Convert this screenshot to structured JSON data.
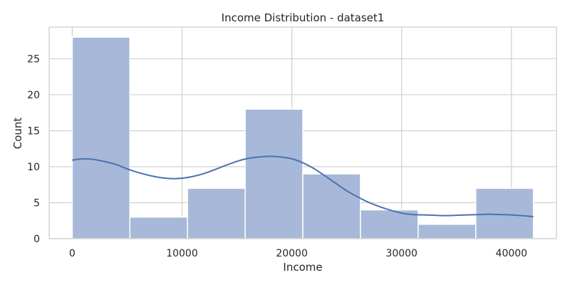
{
  "chart_data": {
    "type": "bar",
    "title": "Income Distribution - dataset1",
    "xlabel": "Income",
    "ylabel": "Count",
    "xlim": [
      -2100,
      44100
    ],
    "ylim": [
      0,
      29.4
    ],
    "xticks": [
      0,
      10000,
      20000,
      30000,
      40000
    ],
    "yticks": [
      0,
      5,
      10,
      15,
      20,
      25
    ],
    "bins": [
      {
        "x0": 0,
        "x1": 5250,
        "count": 28
      },
      {
        "x0": 5250,
        "x1": 10500,
        "count": 3
      },
      {
        "x0": 10500,
        "x1": 15750,
        "count": 7
      },
      {
        "x0": 15750,
        "x1": 21000,
        "count": 18
      },
      {
        "x0": 21000,
        "x1": 26250,
        "count": 9
      },
      {
        "x0": 26250,
        "x1": 31500,
        "count": 4
      },
      {
        "x0": 31500,
        "x1": 36750,
        "count": 2
      },
      {
        "x0": 36750,
        "x1": 42000,
        "count": 7
      }
    ],
    "kde": {
      "x": [
        0,
        1000,
        2000,
        3000,
        4000,
        5000,
        6000,
        7000,
        8000,
        9000,
        10000,
        11000,
        12000,
        13000,
        14000,
        15000,
        16000,
        17000,
        18000,
        19000,
        20000,
        21000,
        22000,
        23000,
        24000,
        25000,
        26000,
        27000,
        28000,
        29000,
        30000,
        31000,
        32000,
        33000,
        34000,
        35000,
        36000,
        37000,
        38000,
        39000,
        40000,
        41000,
        42000
      ],
      "y": [
        10.9,
        11.1,
        11.0,
        10.7,
        10.3,
        9.7,
        9.2,
        8.8,
        8.5,
        8.35,
        8.4,
        8.65,
        9.05,
        9.6,
        10.2,
        10.75,
        11.15,
        11.35,
        11.45,
        11.35,
        11.1,
        10.55,
        9.75,
        8.75,
        7.7,
        6.65,
        5.8,
        5.05,
        4.45,
        3.95,
        3.55,
        3.35,
        3.3,
        3.25,
        3.2,
        3.25,
        3.3,
        3.35,
        3.4,
        3.35,
        3.3,
        3.2,
        3.05
      ]
    },
    "grid": true,
    "colors": {
      "bar_fill": "#a2b4d6",
      "bar_edge": "#ffffff",
      "kde_line": "#4c72b0",
      "grid": "#cfcfcf",
      "spine": "#cccccc",
      "background": "#ffffff",
      "text": "#262626"
    }
  }
}
